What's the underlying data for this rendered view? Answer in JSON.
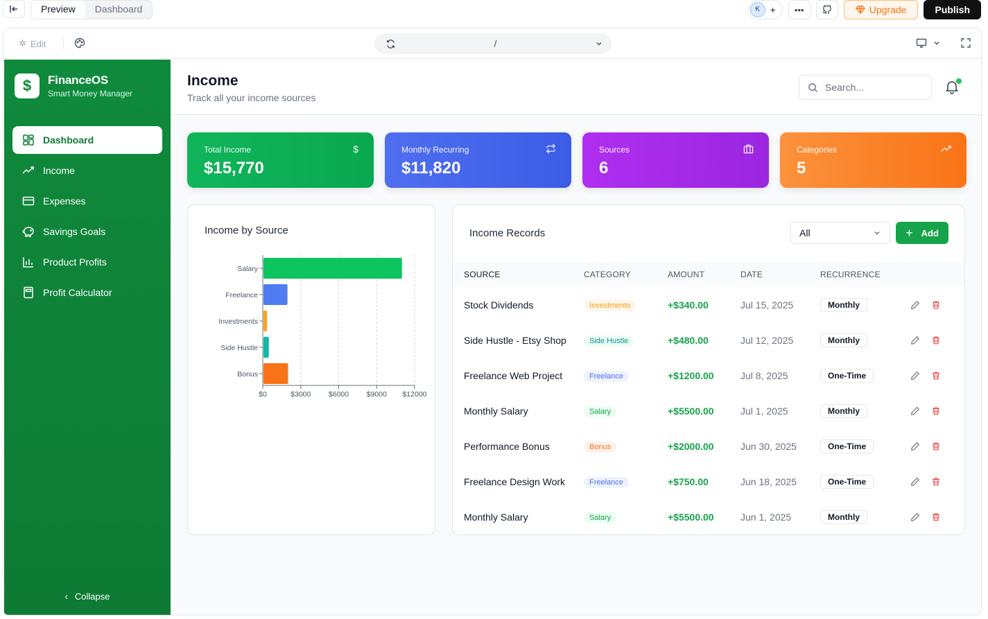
{
  "topbar": {
    "tabs": [
      "Preview",
      "Dashboard"
    ],
    "avatar_initials": "K",
    "upgrade_label": "Upgrade",
    "publish_label": "Publish"
  },
  "toolbar": {
    "edit_label": "Edit",
    "url": "/"
  },
  "sidebar": {
    "brand_name": "FinanceOS",
    "brand_tagline": "Smart Money Manager",
    "brand_icon": "$",
    "items": [
      {
        "label": "Dashboard",
        "icon": "dashboard-icon",
        "active": true
      },
      {
        "label": "Income",
        "icon": "trending-up-icon",
        "active": false
      },
      {
        "label": "Expenses",
        "icon": "card-icon",
        "active": false
      },
      {
        "label": "Savings Goals",
        "icon": "piggy-bank-icon",
        "active": false
      },
      {
        "label": "Product Profits",
        "icon": "bar-chart-icon",
        "active": false
      },
      {
        "label": "Profit Calculator",
        "icon": "calculator-icon",
        "active": false
      }
    ],
    "collapse_label": "Collapse"
  },
  "header": {
    "title": "Income",
    "subtitle": "Track all your income sources",
    "search_placeholder": "Search..."
  },
  "stats": [
    {
      "label": "Total Income",
      "value": "$15,770",
      "icon": "dollar-icon",
      "color": "#10b55a"
    },
    {
      "label": "Monthly Recurring",
      "value": "$11,820",
      "icon": "repeat-icon",
      "color": "#4f6ef0"
    },
    {
      "label": "Sources",
      "value": "6",
      "icon": "briefcase-icon",
      "color": "#a82be8"
    },
    {
      "label": "Categories",
      "value": "5",
      "icon": "trend-icon",
      "color": "#f97316"
    }
  ],
  "chart_panel": {
    "title": "Income by Source"
  },
  "chart_data": {
    "type": "bar",
    "orientation": "horizontal",
    "categories": [
      "Salary",
      "Freelance",
      "Investments",
      "Side Hustle",
      "Bonus"
    ],
    "values": [
      11000,
      1950,
      340,
      480,
      2000
    ],
    "colors": [
      "#0ec45e",
      "#4f7cf0",
      "#f5a524",
      "#14b8a6",
      "#f97316"
    ],
    "xlim": [
      0,
      12000
    ],
    "xticks": [
      "$0",
      "$3000",
      "$6000",
      "$9000",
      "$12000"
    ],
    "xtick_values": [
      0,
      3000,
      6000,
      9000,
      12000
    ],
    "grid": "vertical-dashed"
  },
  "records": {
    "title": "Income Records",
    "filter_value": "All",
    "add_label": "Add",
    "columns": [
      "SOURCE",
      "CATEGORY",
      "AMOUNT",
      "DATE",
      "RECURRENCE"
    ],
    "rows": [
      {
        "source": "Stock Dividends",
        "category": "Investments",
        "cat_class": "b-inv",
        "amount": "+$340.00",
        "date": "Jul 15, 2025",
        "recurrence": "Monthly"
      },
      {
        "source": "Side Hustle - Etsy Shop",
        "category": "Side Hustle",
        "cat_class": "b-side",
        "amount": "+$480.00",
        "date": "Jul 12, 2025",
        "recurrence": "Monthly"
      },
      {
        "source": "Freelance Web Project",
        "category": "Freelance",
        "cat_class": "b-free",
        "amount": "+$1200.00",
        "date": "Jul 8, 2025",
        "recurrence": "One-Time"
      },
      {
        "source": "Monthly Salary",
        "category": "Salary",
        "cat_class": "b-sal",
        "amount": "+$5500.00",
        "date": "Jul 1, 2025",
        "recurrence": "Monthly"
      },
      {
        "source": "Performance Bonus",
        "category": "Bonus",
        "cat_class": "b-bon",
        "amount": "+$2000.00",
        "date": "Jun 30, 2025",
        "recurrence": "One-Time"
      },
      {
        "source": "Freelance Design Work",
        "category": "Freelance",
        "cat_class": "b-free",
        "amount": "+$750.00",
        "date": "Jun 18, 2025",
        "recurrence": "One-Time"
      },
      {
        "source": "Monthly Salary",
        "category": "Salary",
        "cat_class": "b-sal",
        "amount": "+$5500.00",
        "date": "Jun 1, 2025",
        "recurrence": "Monthly"
      }
    ]
  }
}
